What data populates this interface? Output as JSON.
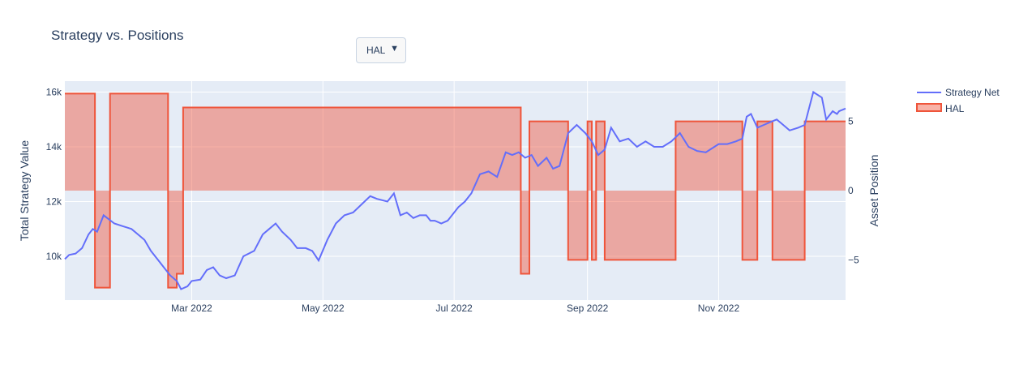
{
  "title": "Strategy vs. Positions",
  "dropdown": {
    "selected": "HAL",
    "arrow": "▼"
  },
  "chart_data": {
    "type": "line",
    "title": "Strategy vs. Positions",
    "xlabel": "",
    "ylabel": "Total Strategy Value",
    "y2label": "Asset Position",
    "x_range": [
      "2022-01-01",
      "2022-12-30"
    ],
    "y_range": [
      8400,
      16400
    ],
    "y2_range": [
      -7.9,
      7.9
    ],
    "x_ticks": [
      {
        "date": "2022-03-01",
        "label": "Mar 2022"
      },
      {
        "date": "2022-05-01",
        "label": "May 2022"
      },
      {
        "date": "2022-07-01",
        "label": "Jul 2022"
      },
      {
        "date": "2022-09-01",
        "label": "Sep 2022"
      },
      {
        "date": "2022-11-01",
        "label": "Nov 2022"
      }
    ],
    "y_ticks": [
      {
        "value": 10000,
        "label": "10k"
      },
      {
        "value": 12000,
        "label": "12k"
      },
      {
        "value": 14000,
        "label": "14k"
      },
      {
        "value": 16000,
        "label": "16k"
      }
    ],
    "y2_ticks": [
      {
        "value": -5,
        "label": "−5"
      },
      {
        "value": 0,
        "label": "0"
      },
      {
        "value": 5,
        "label": "5"
      }
    ],
    "legend_position": "top-right",
    "grid": true,
    "colors": {
      "strategy": "#636efa",
      "position_line": "#ef553b",
      "position_fill": "rgba(239,85,59,0.45)",
      "plot_bg": "#e5ecf6"
    },
    "series": [
      {
        "name": "Strategy Net",
        "axis": "y",
        "x": [
          "2022-01-01",
          "2022-01-03",
          "2022-01-06",
          "2022-01-09",
          "2022-01-12",
          "2022-01-14",
          "2022-01-16",
          "2022-01-19",
          "2022-01-24",
          "2022-01-28",
          "2022-01-30",
          "2022-02-01",
          "2022-02-04",
          "2022-02-07",
          "2022-02-10",
          "2022-02-12",
          "2022-02-13",
          "2022-02-16",
          "2022-02-19",
          "2022-02-22",
          "2022-02-24",
          "2022-02-27",
          "2022-03-01",
          "2022-03-05",
          "2022-03-08",
          "2022-03-11",
          "2022-03-14",
          "2022-03-17",
          "2022-03-21",
          "2022-03-25",
          "2022-03-30",
          "2022-04-03",
          "2022-04-06",
          "2022-04-09",
          "2022-04-12",
          "2022-04-16",
          "2022-04-19",
          "2022-04-23",
          "2022-04-26",
          "2022-04-29",
          "2022-05-03",
          "2022-05-07",
          "2022-05-11",
          "2022-05-15",
          "2022-05-19",
          "2022-05-23",
          "2022-05-26",
          "2022-05-31",
          "2022-06-03",
          "2022-06-06",
          "2022-06-09",
          "2022-06-12",
          "2022-06-15",
          "2022-06-18",
          "2022-06-20",
          "2022-06-22",
          "2022-06-25",
          "2022-06-28",
          "2022-07-03",
          "2022-07-06",
          "2022-07-09",
          "2022-07-13",
          "2022-07-17",
          "2022-07-21",
          "2022-07-25",
          "2022-07-28",
          "2022-07-31",
          "2022-08-03",
          "2022-08-06",
          "2022-08-09",
          "2022-08-13",
          "2022-08-16",
          "2022-08-19",
          "2022-08-23",
          "2022-08-27",
          "2022-08-31",
          "2022-09-03",
          "2022-09-06",
          "2022-09-09",
          "2022-09-12",
          "2022-09-16",
          "2022-09-20",
          "2022-09-24",
          "2022-09-28",
          "2022-10-02",
          "2022-10-06",
          "2022-10-10",
          "2022-10-14",
          "2022-10-18",
          "2022-10-22",
          "2022-10-26",
          "2022-10-30",
          "2022-11-01",
          "2022-11-05",
          "2022-11-09",
          "2022-11-12",
          "2022-11-14",
          "2022-11-16",
          "2022-11-19",
          "2022-11-22",
          "2022-11-25",
          "2022-11-28",
          "2022-12-01",
          "2022-12-04",
          "2022-12-08",
          "2022-12-11",
          "2022-12-15",
          "2022-12-19",
          "2022-12-21",
          "2022-12-24",
          "2022-12-26",
          "2022-12-27",
          "2022-12-30"
        ],
        "y": [
          9900,
          10050,
          10100,
          10300,
          10800,
          11000,
          10900,
          11500,
          11200,
          11100,
          11050,
          11000,
          10800,
          10600,
          10200,
          10000,
          9900,
          9600,
          9300,
          9100,
          8800,
          8900,
          9100,
          9150,
          9500,
          9600,
          9300,
          9200,
          9300,
          10000,
          10200,
          10800,
          11000,
          11200,
          10900,
          10600,
          10300,
          10300,
          10200,
          9850,
          10600,
          11200,
          11500,
          11600,
          11900,
          12200,
          12100,
          12000,
          12300,
          11500,
          11600,
          11400,
          11500,
          11500,
          11300,
          11300,
          11200,
          11300,
          11800,
          12000,
          12300,
          13000,
          13100,
          12900,
          13800,
          13700,
          13800,
          13600,
          13700,
          13300,
          13600,
          13200,
          13300,
          14500,
          14800,
          14500,
          14200,
          13700,
          13900,
          14700,
          14200,
          14300,
          14000,
          14200,
          14000,
          14000,
          14200,
          14500,
          14000,
          13850,
          13800,
          14000,
          14100,
          14100,
          14200,
          14300,
          15100,
          15200,
          14700,
          14800,
          14900,
          15000,
          14800,
          14600,
          14700,
          14800,
          16000,
          15800,
          15000,
          15300,
          15200,
          15300,
          15400
        ]
      },
      {
        "name": "HAL",
        "axis": "y2",
        "step": true,
        "x": [
          "2022-01-01",
          "2022-01-15",
          "2022-01-22",
          "2022-02-18",
          "2022-02-22",
          "2022-02-25",
          "2022-03-01",
          "2022-08-01",
          "2022-08-05",
          "2022-08-23",
          "2022-09-01",
          "2022-09-03",
          "2022-09-05",
          "2022-09-09",
          "2022-10-12",
          "2022-11-12",
          "2022-11-19",
          "2022-11-26",
          "2022-12-11",
          "2022-12-17",
          "2022-12-30"
        ],
        "y": [
          7,
          -7,
          7,
          -7,
          -6,
          6,
          6,
          -6,
          5,
          -5,
          5,
          -5,
          5,
          -5,
          5,
          -5,
          5,
          -5,
          5,
          5,
          5
        ]
      }
    ]
  }
}
